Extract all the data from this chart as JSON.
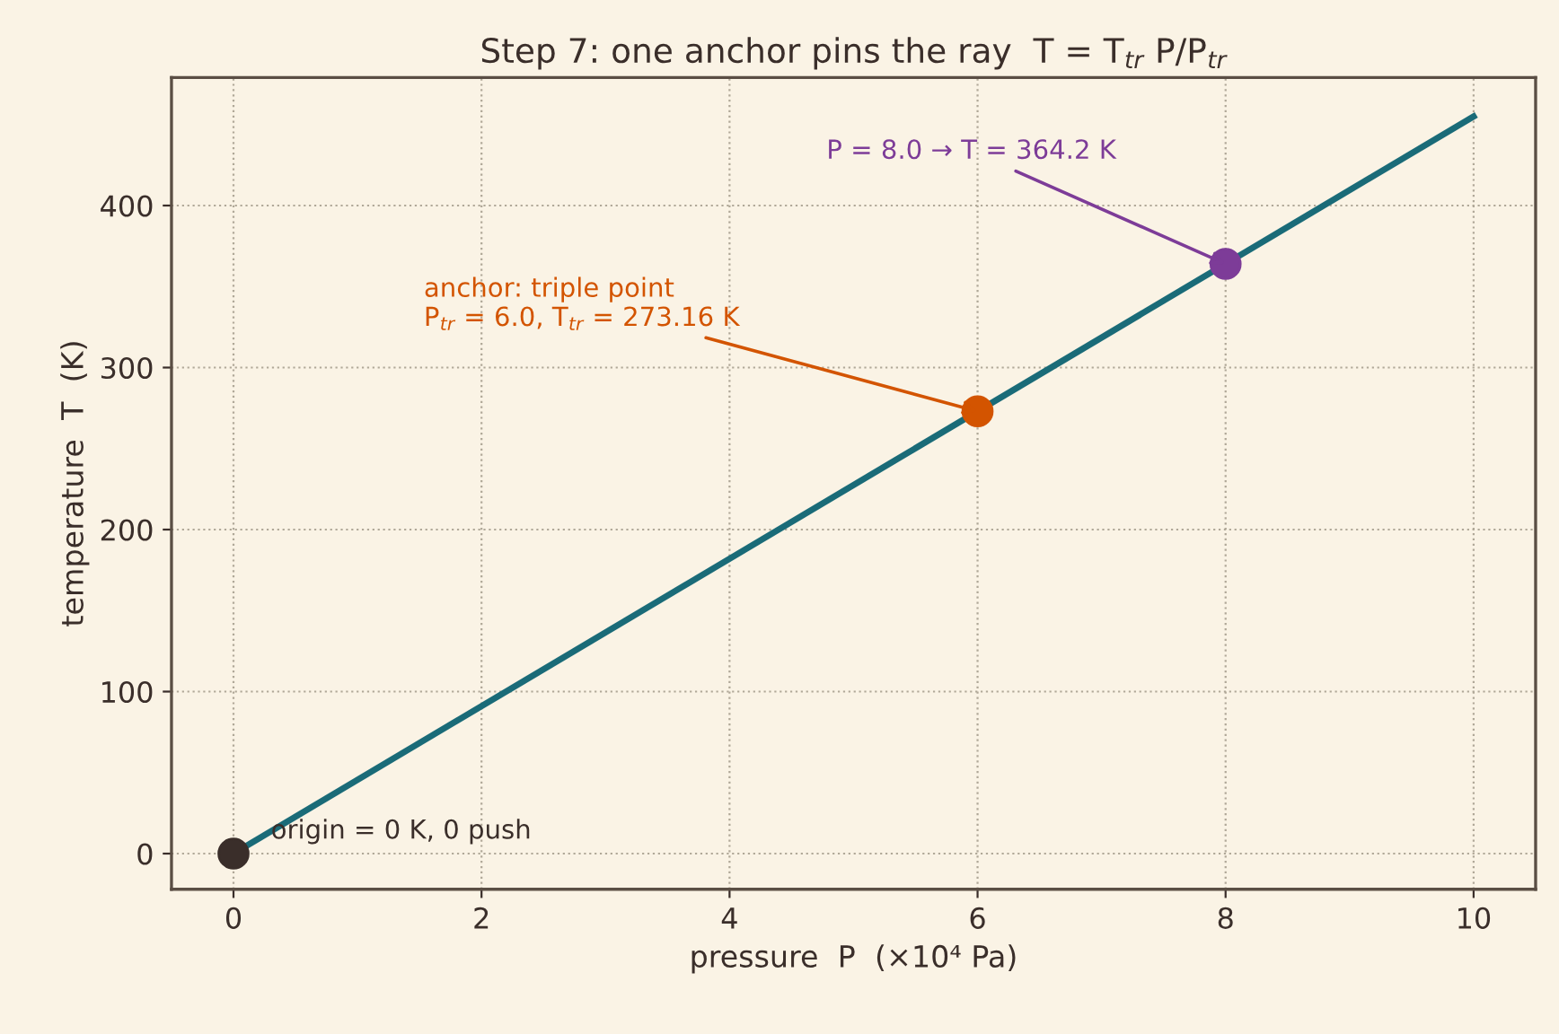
{
  "chart_data": {
    "type": "line",
    "title": "Step 7: one anchor pins the ray  T = T$_{tr}$ P/P$_{tr}$",
    "xlabel": "pressure  P  (×10⁴ Pa)",
    "ylabel": "temperature  T  (K)",
    "series": [
      {
        "color": "#1a6b78",
        "x": [
          0,
          10
        ],
        "values": [
          0,
          455
        ]
      },
      {
        "type": "scatter",
        "marker": "circle",
        "colors": [
          "#3a2e2a",
          "#d35400",
          "#7d3c98"
        ],
        "x": [
          0,
          6,
          8
        ],
        "values": [
          0,
          273,
          364
        ]
      }
    ],
    "annotations": [
      {
        "text": "origin = 0 K, 0 push",
        "x": 0,
        "y": 0
      },
      {
        "text": "anchor: triple point\nP$_{tr}$ = 6.0, T$_{tr}$ = 273.16 K",
        "x": 6,
        "y": 273
      },
      {
        "text": "P = 8.0 → T = 364.2 K",
        "x": 8,
        "y": 364
      }
    ],
    "xlim": [
      -0.5,
      10.5
    ],
    "xticks": [
      0,
      2,
      4,
      6,
      8,
      10
    ],
    "ylim": [
      -22,
      479
    ],
    "yticks": [
      0,
      100,
      200,
      300,
      400
    ],
    "grid": true
  }
}
